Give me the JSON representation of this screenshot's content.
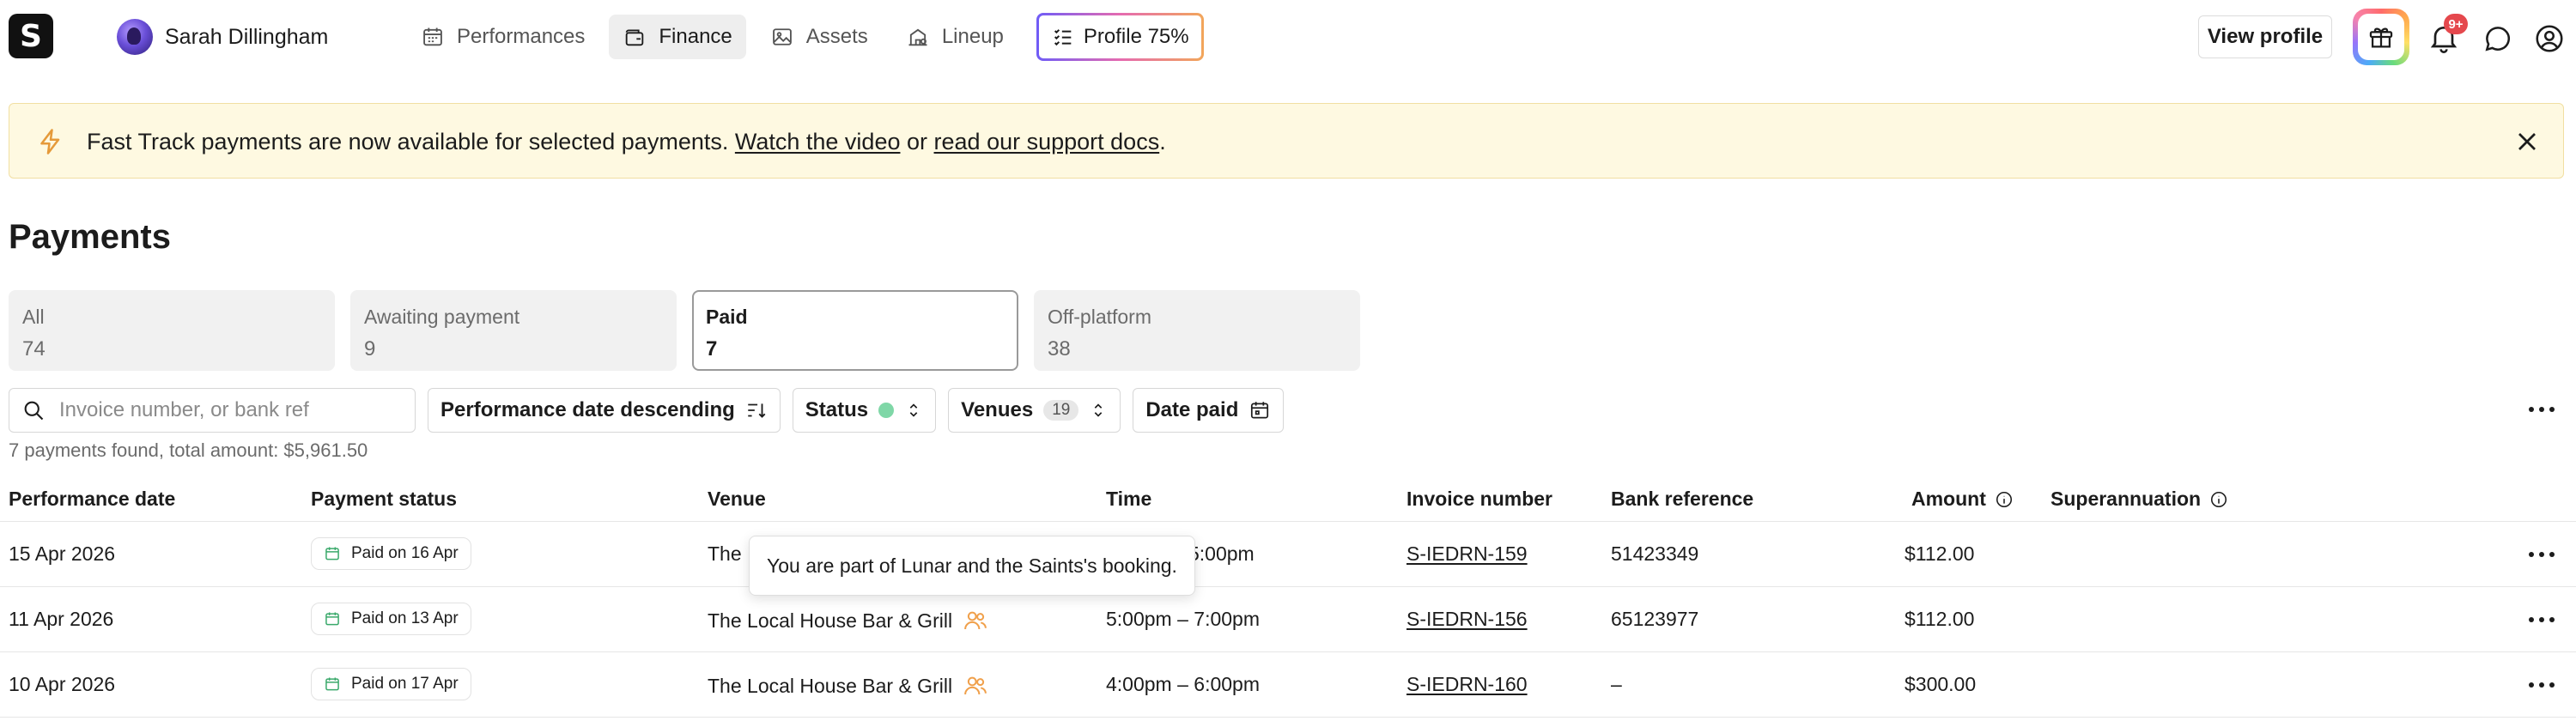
{
  "header": {
    "logo_letter": "S",
    "user_name": "Sarah Dillingham",
    "nav": [
      {
        "label": "Performances",
        "icon": "calendar-icon",
        "active": false
      },
      {
        "label": "Finance",
        "icon": "wallet-icon",
        "active": true
      },
      {
        "label": "Assets",
        "icon": "image-icon",
        "active": false
      },
      {
        "label": "Lineup",
        "icon": "building-icon",
        "active": false
      }
    ],
    "profile_progress": "Profile 75%",
    "view_profile_label": "View profile",
    "notification_badge": "9+"
  },
  "banner": {
    "text_before": "Fast Track payments are now available for selected payments.",
    "link1": "Watch the video",
    "text_mid": "or",
    "link2": "read our support docs",
    "text_after": "."
  },
  "page_title": "Payments",
  "tabs": [
    {
      "label": "All",
      "count": "74",
      "active": false
    },
    {
      "label": "Awaiting payment",
      "count": "9",
      "active": false
    },
    {
      "label": "Paid",
      "count": "7",
      "active": true
    },
    {
      "label": "Off-platform",
      "count": "38",
      "active": false
    }
  ],
  "filters": {
    "search_placeholder": "Invoice number, or bank ref",
    "sort_label": "Performance date descending",
    "status_label": "Status",
    "venues_label": "Venues",
    "venues_count": "19",
    "date_paid_label": "Date paid"
  },
  "summary": "7 payments found, total amount: $5,961.50",
  "table": {
    "columns": {
      "performance_date": "Performance date",
      "payment_status": "Payment status",
      "venue": "Venue",
      "time": "Time",
      "invoice_number": "Invoice number",
      "bank_reference": "Bank reference",
      "amount": "Amount",
      "superannuation": "Superannuation"
    },
    "rows": [
      {
        "date": "15 Apr 2026",
        "status": "Paid on 16 Apr",
        "venue": "The",
        "time": "5:00pm",
        "invoice": "S-IEDRN-159",
        "bank_ref": "51423349",
        "amount": "$112.00"
      },
      {
        "date": "11 Apr 2026",
        "status": "Paid on 13 Apr",
        "venue": "The Local House Bar & Grill",
        "time": "5:00pm – 7:00pm",
        "invoice": "S-IEDRN-156",
        "bank_ref": "65123977",
        "amount": "$112.00"
      },
      {
        "date": "10 Apr 2026",
        "status": "Paid on 17 Apr",
        "venue": "The Local House Bar & Grill",
        "time": "4:00pm – 6:00pm",
        "invoice": "S-IEDRN-160",
        "bank_ref": "–",
        "amount": "$300.00"
      }
    ]
  },
  "tooltip": "You are part of Lunar and the Saints's booking.",
  "colors": {
    "banner_bg": "#fef9e1",
    "status_dot": "#7fd7a7",
    "badge_red": "#e5484d",
    "group_icon": "#f0a04b",
    "paid_icon": "#3aa96b"
  }
}
